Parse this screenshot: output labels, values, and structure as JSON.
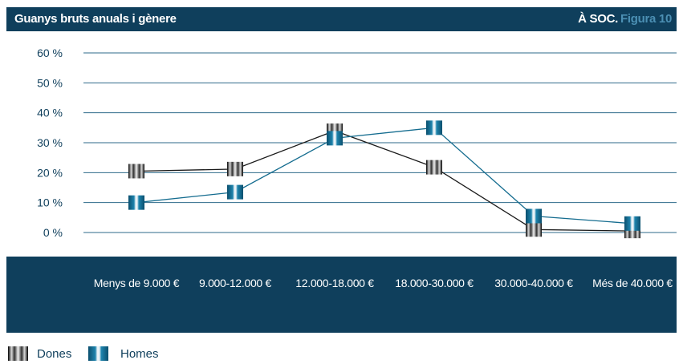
{
  "header": {
    "title": "Guanys bruts anuals i gènere",
    "brand": "À SOC.",
    "figure": "Figura 10"
  },
  "colors": {
    "navy": "#0f3f5c",
    "dones": "#1a1a1a",
    "homes": "#146c8f",
    "gridline": "#2d6a8a"
  },
  "chart_data": {
    "type": "line",
    "categories": [
      "Menys de 9.000 €",
      "9.000-12.000 €",
      "12.000-18.000 €",
      "18.000-30.000 €",
      "30.000-40.000 €",
      "Més de 40.000 €"
    ],
    "series": [
      {
        "name": "Dones",
        "values": [
          20.5,
          21.2,
          34,
          21.8,
          1,
          0.5
        ]
      },
      {
        "name": "Homes",
        "values": [
          10,
          13.5,
          31.5,
          35,
          5.5,
          3
        ]
      }
    ],
    "yticks": [
      "60 %",
      "50 %",
      "40 %",
      "30 %",
      "20 %",
      "10 %",
      "0 %"
    ],
    "ytick_values": [
      60,
      50,
      40,
      30,
      20,
      10,
      0
    ],
    "ylim": [
      0,
      60
    ],
    "grid": true,
    "legend_position": "bottom-left"
  }
}
